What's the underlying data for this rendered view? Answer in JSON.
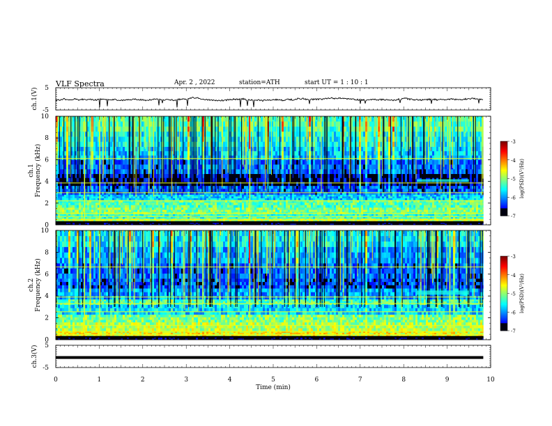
{
  "header": {
    "title": "VLF  Spectra",
    "date": "Apr. 2  , 2022",
    "station": "station=ATH",
    "start_ut": "start  UT  =   1  : 10 : 1"
  },
  "chart_data": [
    {
      "type": "line",
      "ylabel": "ch.1(V)",
      "ylim": [
        -5,
        5
      ],
      "yticks": [
        "5",
        "-5"
      ],
      "xlim": [
        0,
        10
      ],
      "series": [
        {
          "color": "#000000",
          "level": -0.3
        }
      ]
    },
    {
      "type": "heatmap",
      "ylabel": "ch.1\nFrequency (kHz)",
      "ylim": [
        0,
        10
      ],
      "yticks": [
        "0",
        "2",
        "4",
        "6",
        "8",
        "10"
      ],
      "xlim": [
        0,
        10
      ],
      "data_end_min": 9.83,
      "colorbar": {
        "label": "log(PSD)(V²/Hz)",
        "ticks": [
          "-3",
          "-4",
          "-5",
          "-6",
          "-7"
        ],
        "range": [
          -7,
          -3
        ]
      }
    },
    {
      "type": "heatmap",
      "ylabel": "ch.2\nFrequency (kHz)",
      "ylim": [
        0,
        10
      ],
      "yticks": [
        "0",
        "2",
        "4",
        "6",
        "8",
        "10"
      ],
      "xlim": [
        0,
        10
      ],
      "data_end_min": 9.83,
      "colorbar": {
        "label": "log(PSD)(V²/Hz)",
        "ticks": [
          "-3",
          "-4",
          "-5",
          "-6",
          "-7"
        ],
        "range": [
          -7,
          -3
        ]
      }
    },
    {
      "type": "line",
      "ylabel": "ch.3(V)",
      "ylim": [
        -5,
        5
      ],
      "yticks": [
        "5",
        "-5"
      ],
      "xlim": [
        0,
        10
      ],
      "xlabel": "Time (min)",
      "xticks": [
        "0",
        "1",
        "2",
        "3",
        "4",
        "5",
        "6",
        "7",
        "8",
        "9",
        "10"
      ],
      "series": [
        {
          "color": "#000000",
          "level": -0.5
        }
      ]
    }
  ]
}
